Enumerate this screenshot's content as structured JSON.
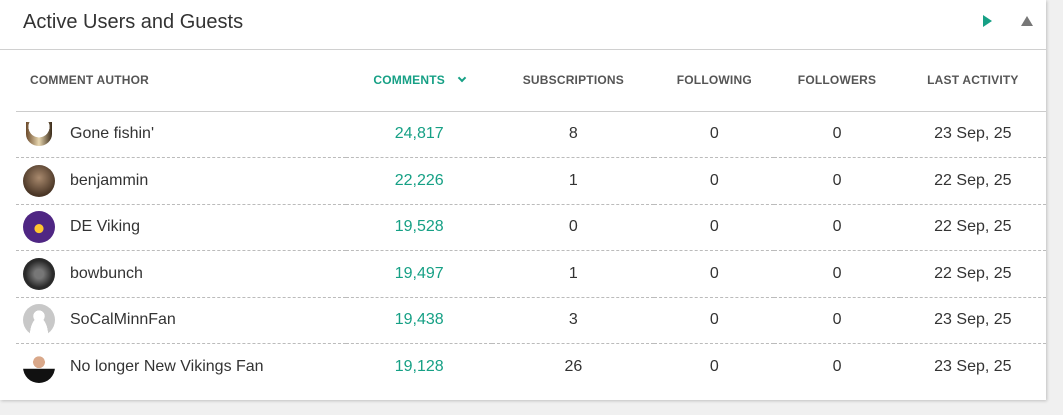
{
  "title": "Active Users and Guests",
  "icons": {
    "play": "play-icon",
    "collapse": "triangle-up-icon",
    "sort": "chevron-down-icon"
  },
  "accent": "#16a085",
  "columns": [
    "COMMENT AUTHOR",
    "COMMENTS",
    "SUBSCRIPTIONS",
    "FOLLOWING",
    "FOLLOWERS",
    "LAST ACTIVITY"
  ],
  "rows": [
    {
      "author": "Gone fishin'",
      "comments": "24,817",
      "subscriptions": "8",
      "following": "0",
      "followers": "0",
      "last_activity": "23 Sep, 25",
      "avatar": "horn"
    },
    {
      "author": "benjammin",
      "comments": "22,226",
      "subscriptions": "1",
      "following": "0",
      "followers": "0",
      "last_activity": "22 Sep, 25",
      "avatar": "photo"
    },
    {
      "author": "DE Viking",
      "comments": "19,528",
      "subscriptions": "0",
      "following": "0",
      "followers": "0",
      "last_activity": "22 Sep, 25",
      "avatar": "viking"
    },
    {
      "author": "bowbunch",
      "comments": "19,497",
      "subscriptions": "1",
      "following": "0",
      "followers": "0",
      "last_activity": "22 Sep, 25",
      "avatar": "dark"
    },
    {
      "author": "SoCalMinnFan",
      "comments": "19,438",
      "subscriptions": "3",
      "following": "0",
      "followers": "0",
      "last_activity": "23 Sep, 25",
      "avatar": "default"
    },
    {
      "author": "No longer New Vikings Fan",
      "comments": "19,128",
      "subscriptions": "26",
      "following": "0",
      "followers": "0",
      "last_activity": "23 Sep, 25",
      "avatar": "suit"
    }
  ]
}
